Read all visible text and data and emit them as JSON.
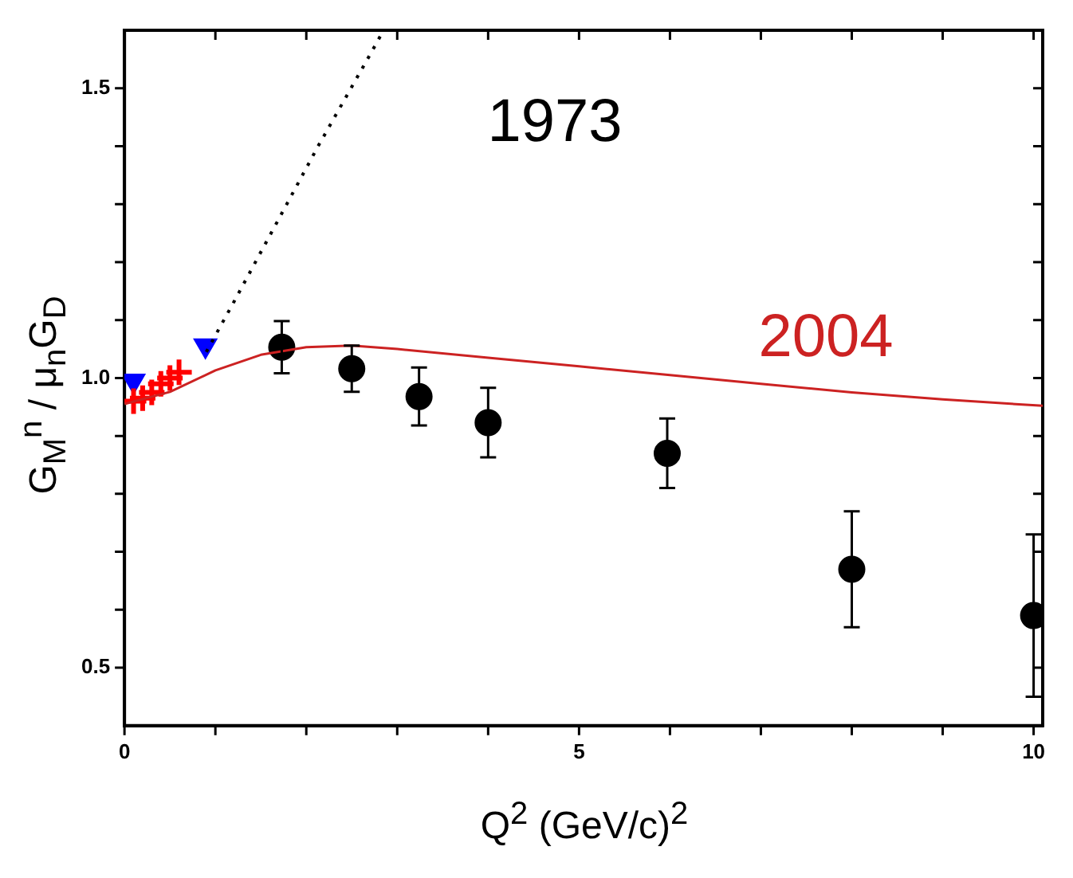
{
  "chart_data": {
    "type": "scatter",
    "xlabel": "Q$^{2}$ (GeV/c)$^{2}$",
    "ylabel": "G$_{M}$$^{n}$ / μ$_{n}$G$_{D}$",
    "xlim": [
      0,
      10.1
    ],
    "ylim": [
      0.4,
      1.6
    ],
    "xticks": [
      0,
      {
        "value": 1,
        "label": null
      },
      {
        "value": 2,
        "label": null
      },
      {
        "value": 3,
        "label": null
      },
      {
        "value": 4,
        "label": null
      },
      5,
      {
        "value": 6,
        "label": null
      },
      {
        "value": 7,
        "label": null
      },
      {
        "value": 8,
        "label": null
      },
      {
        "value": 9,
        "label": null
      },
      10
    ],
    "yticks": [
      {
        "value": 0.5,
        "label": "0.5"
      },
      {
        "value": 0.6,
        "label": null
      },
      {
        "value": 0.7,
        "label": null
      },
      {
        "value": 0.8,
        "label": null
      },
      {
        "value": 0.9,
        "label": null
      },
      {
        "value": 1.0,
        "label": "1.0"
      },
      {
        "value": 1.1,
        "label": null
      },
      {
        "value": 1.2,
        "label": null
      },
      {
        "value": 1.3,
        "label": null
      },
      {
        "value": 1.4,
        "label": null
      },
      {
        "value": 1.5,
        "label": "1.5"
      }
    ],
    "grid": false,
    "legend": false,
    "annotations": [
      "1973",
      "2004"
    ],
    "series": [
      {
        "type": "line",
        "color": "#000000",
        "line_style": "dotted",
        "marker": "none",
        "x": [
          0.9,
          1.22,
          2.13,
          2.73,
          2.85
        ],
        "values": [
          1.045,
          1.136,
          1.4,
          1.566,
          1.6
        ]
      },
      {
        "type": "line",
        "color": "#cc2222",
        "line_style": "solid",
        "marker": "none",
        "x": [
          0,
          0.5,
          1,
          1.5,
          2,
          2.5,
          3,
          4,
          5,
          6,
          7,
          8,
          9,
          10.1
        ],
        "values": [
          0.955,
          0.976,
          1.013,
          1.04,
          1.053,
          1.056,
          1.05,
          1.035,
          1.02,
          1.005,
          0.99,
          0.975,
          0.963,
          0.952
        ]
      },
      {
        "type": "scatter",
        "color": "#ff0000",
        "marker": "cross",
        "x": [
          0.1,
          0.2,
          0.3,
          0.4,
          0.5,
          0.6
        ],
        "values": [
          0.96,
          0.965,
          0.975,
          0.99,
          1.0,
          1.01
        ]
      },
      {
        "type": "scatter",
        "color": "#0000ff",
        "marker": "triangle",
        "x": [
          0.1,
          0.89
        ],
        "values": [
          0.995,
          1.056
        ]
      },
      {
        "type": "scatter",
        "color": "#000000",
        "marker": "circle",
        "x": [
          1.73,
          2.5,
          3.24,
          4.0,
          5.97,
          8.0,
          10.0
        ],
        "values": [
          1.053,
          1.016,
          0.968,
          0.923,
          0.87,
          0.67,
          0.59
        ],
        "errors": [
          0.045,
          0.04,
          0.05,
          0.06,
          0.06,
          0.1,
          0.14
        ]
      }
    ]
  }
}
